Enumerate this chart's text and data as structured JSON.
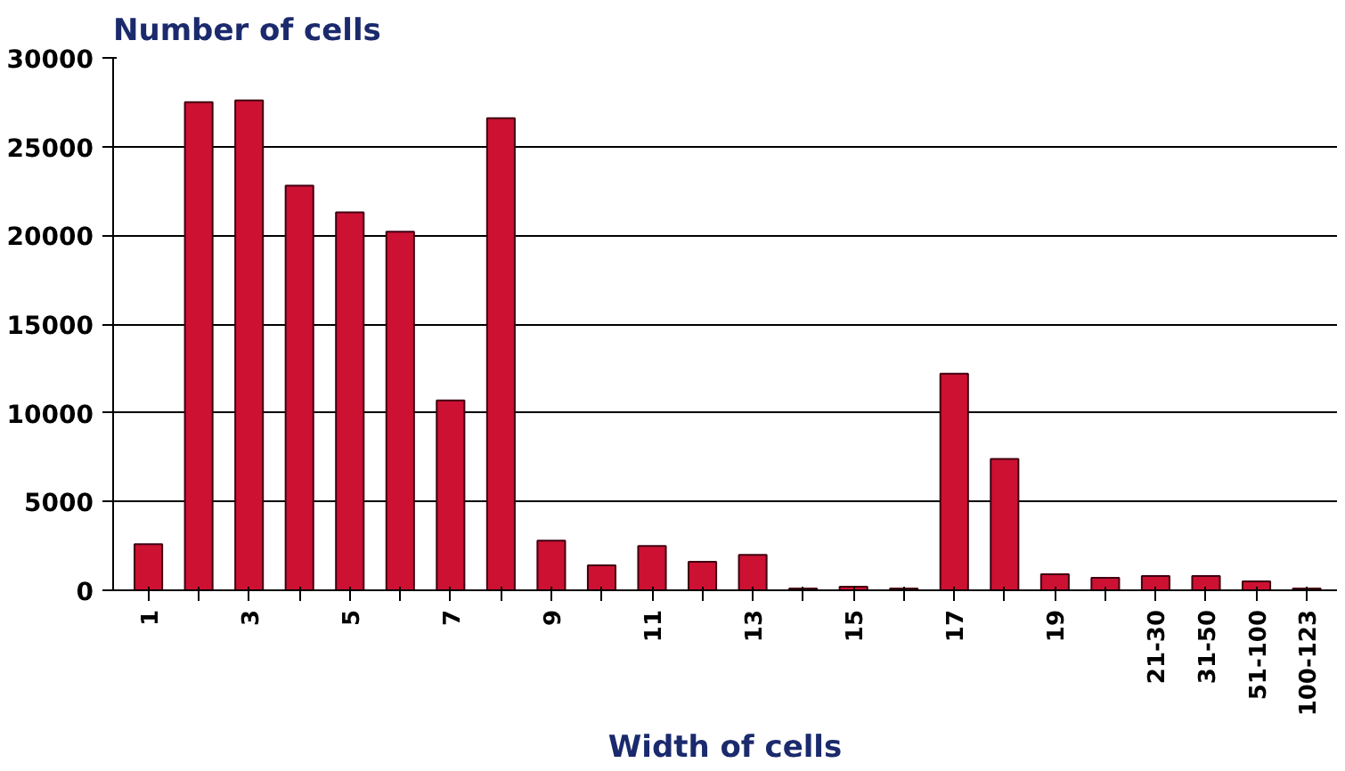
{
  "chart_data": {
    "type": "bar",
    "ylabel": "Number of cells",
    "xlabel": "Width of cells",
    "categories": [
      "1",
      null,
      "3",
      null,
      "5",
      null,
      "7",
      null,
      "9",
      null,
      "11",
      null,
      "13",
      null,
      "15",
      null,
      "17",
      null,
      "19",
      null,
      "21-30",
      "31-50",
      "51-100",
      "100-123"
    ],
    "values": [
      2600,
      27500,
      27600,
      22800,
      21300,
      20200,
      10700,
      26600,
      2800,
      1400,
      2500,
      1600,
      2000,
      100,
      200,
      100,
      12200,
      7400,
      900,
      700,
      800,
      800,
      500,
      100
    ],
    "color": "#cc1133",
    "ylim": [
      0,
      30000
    ],
    "yticks": [
      0,
      5000,
      10000,
      15000,
      20000,
      25000,
      30000
    ],
    "grid": "y"
  }
}
